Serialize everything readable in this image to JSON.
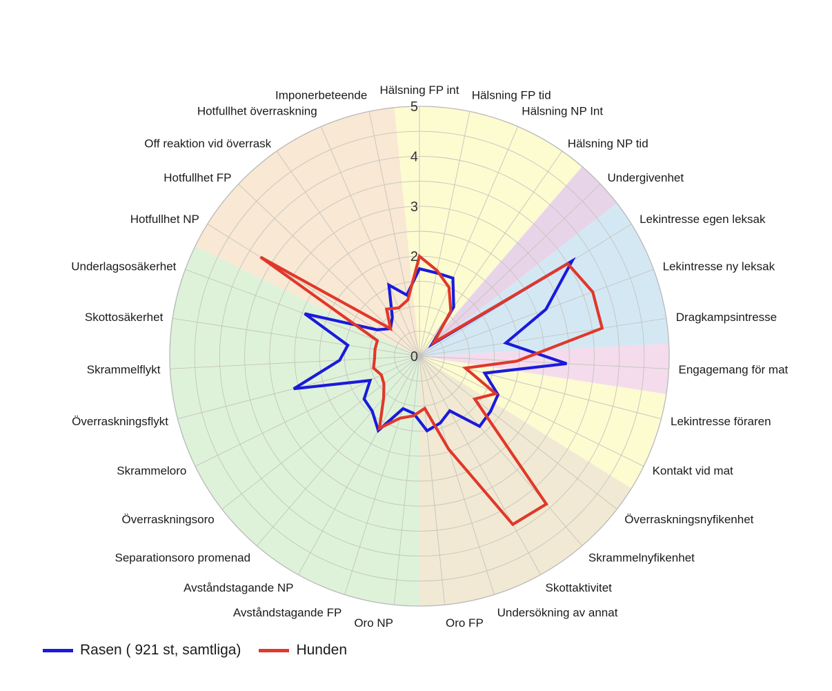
{
  "chart_data": {
    "type": "radar",
    "title": "",
    "rmin": 0,
    "rmax": 5,
    "ticks": [
      "0",
      "2",
      "3",
      "4",
      "5"
    ],
    "tick_values": [
      0,
      2,
      3,
      4,
      5
    ],
    "grid": true,
    "legend_position": "bottom-left",
    "categories": [
      "Hälsning FP int",
      "Hälsning FP tid",
      "Hälsning NP Int",
      "Hälsning NP tid",
      "Undergivenhet",
      "Lekintresse egen leksak",
      "Lekintresse ny leksak",
      "Dragkampsintresse",
      "Engagemang för mat",
      "Lekintresse föraren",
      "Kontakt vid mat",
      "Överraskningsnyfikenhet",
      "Skrammelnyfikenhet",
      "Skottaktivitet",
      "Undersökning av annat",
      "Oro FP",
      "Oro NP",
      "Avståndstagande FP",
      "Avståndstagande NP",
      "Separationsoro promenad",
      "Överraskningsoro",
      "Skrammeloro",
      "Överraskningsflykt",
      "Skrammelflykt",
      "Skottosäkerhet",
      "Underlagsosäkerhet",
      "Hotfullhet NP",
      "Hotfullhet FP",
      "Off reaktion vid överrask",
      "Hotfullhet överraskning",
      "Imponerbeteende"
    ],
    "sectors": [
      {
        "name": "yellow-group",
        "start": 0,
        "end": 3,
        "color": "#fdfbd0"
      },
      {
        "name": "purple-group",
        "start": 4,
        "end": 4,
        "color": "#e8d4e8"
      },
      {
        "name": "blue-group",
        "start": 5,
        "end": 7,
        "color": "#d4e8f4"
      },
      {
        "name": "pink-group",
        "start": 8,
        "end": 8,
        "color": "#f4dcec"
      },
      {
        "name": "yellow-group-2",
        "start": 9,
        "end": 10,
        "color": "#fdfbd0"
      },
      {
        "name": "tan-group",
        "start": 11,
        "end": 15,
        "color": "#f1e9d3"
      },
      {
        "name": "green-group",
        "start": 16,
        "end": 25,
        "color": "#def2da"
      },
      {
        "name": "peach-group",
        "start": 26,
        "end": 30,
        "color": "#f8e8d4"
      }
    ],
    "series": [
      {
        "name": "Rasen ( 921 st, samtliga)",
        "color": "#1a1adc",
        "values": [
          1.75,
          1.7,
          1.7,
          1.2,
          0.35,
          3.6,
          2.7,
          1.75,
          2.95,
          1.35,
          1.75,
          1.8,
          1.85,
          1.25,
          1.4,
          1.5,
          1.15,
          1.1,
          1.7,
          1.45,
          1.4,
          1.1,
          2.6,
          1.6,
          1.45,
          2.45,
          1.0,
          0.8,
          0.95,
          1.55,
          1.25
        ],
        "fill": "none"
      },
      {
        "name": "Hunden",
        "color": "#e0382a",
        "values": [
          2.0,
          1.75,
          1.5,
          1.1,
          0.4,
          3.5,
          3.7,
          3.7,
          1.95,
          0.95,
          1.7,
          1.4,
          3.9,
          3.85,
          1.95,
          1.05,
          1.2,
          1.3,
          1.65,
          1.1,
          0.9,
          0.85,
          0.95,
          0.9,
          0.9,
          0.9,
          3.75,
          0.8,
          1.15,
          1.05,
          1.15
        ]
      }
    ]
  },
  "legend": {
    "items": [
      {
        "label": "Rasen ( 921 st, samtliga)",
        "color": "#1a1adc"
      },
      {
        "label": "Hunden",
        "color": "#e0382a"
      }
    ]
  }
}
